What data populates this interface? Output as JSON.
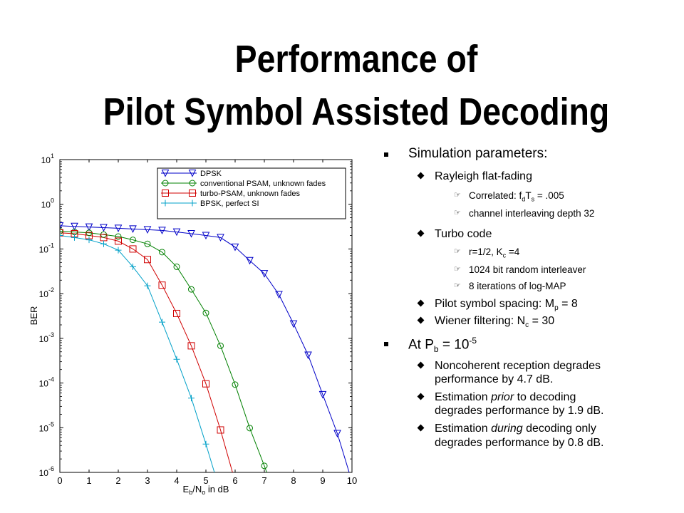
{
  "slide": {
    "title_line1": "Performance of",
    "title_line2": "Pilot Symbol Assisted Decoding"
  },
  "bullets": {
    "sim_params": "Simulation parameters:",
    "rayleigh": "Rayleigh flat-fading",
    "correlated_prefix": "Correlated: f",
    "correlated_sub1": "d",
    "correlated_mid": "T",
    "correlated_sub2": "s",
    "correlated_suffix": " = .005",
    "interleaving": "channel interleaving depth 32",
    "turbo_code": "Turbo code",
    "rate_prefix": "r=1/2, K",
    "rate_sub": "c",
    "rate_suffix": " =4",
    "interleaver": "1024 bit random interleaver",
    "iterations": "8 iterations of log-MAP",
    "pilot_prefix": "Pilot symbol spacing: M",
    "pilot_sub": "p",
    "pilot_suffix": " = 8",
    "wiener_prefix": "Wiener filtering: N",
    "wiener_sub": "c",
    "wiener_suffix": " = 30",
    "atpb_prefix": "At P",
    "atpb_sub": "b",
    "atpb_mid": " = 10",
    "atpb_sup": "-5",
    "noncoherent_l1": "Noncoherent reception degrades",
    "noncoherent_l2": "performance by 4.7 dB.",
    "prior_a": "Estimation ",
    "prior_b": "prior",
    "prior_c": " to decoding",
    "prior_l2": "degrades performance by 1.9 dB.",
    "during_a": "Estimation ",
    "during_b": "during",
    "during_c": " decoding only",
    "during_l2": "degrades performance by 0.8 dB."
  },
  "chart_data": {
    "type": "line",
    "title": "",
    "xlabel_main": "E",
    "xlabel_sub1": "b",
    "xlabel_mid": "/N",
    "xlabel_sub2": "o",
    "xlabel_suffix": " in dB",
    "ylabel": "BER",
    "xlim": [
      0,
      10
    ],
    "ylim": [
      1e-06,
      10
    ],
    "y_scale": "log",
    "grid": false,
    "legend_position": "top-right",
    "x_ticks": [
      "0",
      "1",
      "2",
      "3",
      "4",
      "5",
      "6",
      "7",
      "8",
      "9",
      "10"
    ],
    "y_ticks": [
      {
        "base": "10",
        "exp": "1"
      },
      {
        "base": "10",
        "exp": "0"
      },
      {
        "base": "10",
        "exp": "-1"
      },
      {
        "base": "10",
        "exp": "-2"
      },
      {
        "base": "10",
        "exp": "-3"
      },
      {
        "base": "10",
        "exp": "-4"
      },
      {
        "base": "10",
        "exp": "-5"
      },
      {
        "base": "10",
        "exp": "-6"
      }
    ],
    "series": [
      {
        "name": "DPSK",
        "color": "#0000c8",
        "marker": "triangle-down",
        "x": [
          0,
          0.5,
          1,
          1.5,
          2,
          2.5,
          3,
          3.5,
          4,
          4.5,
          5,
          5.5,
          6,
          6.5,
          7,
          7.5,
          8,
          8.5,
          9,
          9.5,
          10
        ],
        "y": [
          0.33,
          0.32,
          0.31,
          0.3,
          0.29,
          0.28,
          0.27,
          0.26,
          0.24,
          0.22,
          0.2,
          0.18,
          0.11,
          0.055,
          0.028,
          0.0095,
          0.0021,
          0.00042,
          5.5e-05,
          7.4e-06,
          6.2e-07
        ]
      },
      {
        "name": "conventional PSAM, unknown fades",
        "color": "#008000",
        "marker": "circle",
        "x": [
          0,
          0.5,
          1,
          1.5,
          2,
          2.5,
          3,
          3.5,
          4,
          4.5,
          5,
          5.5,
          6,
          6.5,
          7,
          7.5
        ],
        "y": [
          0.25,
          0.24,
          0.23,
          0.21,
          0.19,
          0.16,
          0.13,
          0.085,
          0.04,
          0.0125,
          0.0037,
          0.00068,
          9.2e-05,
          9.8e-06,
          1.4e-06,
          1.8e-07
        ]
      },
      {
        "name": "turbo-PSAM, unknown fades",
        "color": "#d00000",
        "marker": "square",
        "x": [
          0,
          0.5,
          1,
          1.5,
          2,
          2.5,
          3,
          3.5,
          4,
          4.5,
          5,
          5.5,
          6
        ],
        "y": [
          0.23,
          0.22,
          0.2,
          0.18,
          0.15,
          0.1,
          0.058,
          0.0155,
          0.0036,
          0.00068,
          9.6e-05,
          8.9e-06,
          6.2e-07
        ]
      },
      {
        "name": "BPSK, perfect SI",
        "color": "#00a0c8",
        "marker": "plus",
        "x": [
          0,
          0.5,
          1,
          1.5,
          2,
          2.5,
          3,
          3.5,
          4,
          4.5,
          5,
          5.5
        ],
        "y": [
          0.2,
          0.18,
          0.16,
          0.13,
          0.094,
          0.04,
          0.015,
          0.0023,
          0.00034,
          4.6e-05,
          4.3e-06,
          3.5e-07
        ]
      }
    ]
  }
}
